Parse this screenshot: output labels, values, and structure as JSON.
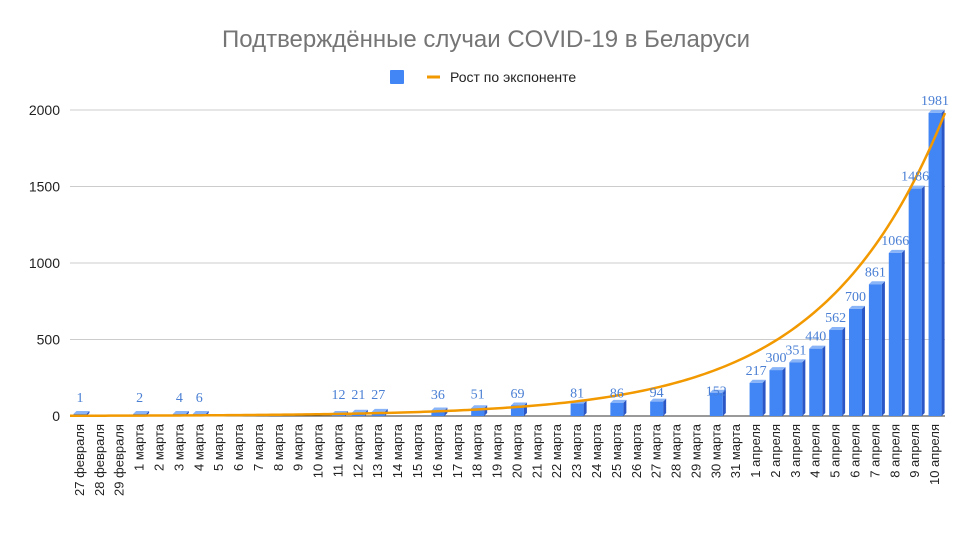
{
  "chart_data": {
    "type": "bar",
    "title": "Подтверждённые случаи COVID-19 в Беларуси",
    "legend": {
      "position": "top",
      "entries": [
        {
          "kind": "bar",
          "label": "",
          "color": "#4285f4"
        },
        {
          "kind": "line",
          "label": "Рост по экспоненте",
          "color": "#f29900"
        }
      ]
    },
    "categories": [
      "27 февраля",
      "28 февраля",
      "29 февраля",
      "1 марта",
      "2 марта",
      "3 марта",
      "4 марта",
      "5 марта",
      "6 марта",
      "7 марта",
      "8 марта",
      "9 марта",
      "10 марта",
      "11 марта",
      "12 марта",
      "13 марта",
      "14 марта",
      "15 марта",
      "16 марта",
      "17 марта",
      "18 марта",
      "19 марта",
      "20 марта",
      "21 марта",
      "22 марта",
      "23 марта",
      "24 марта",
      "25 марта",
      "26 марта",
      "27 марта",
      "28 марта",
      "29 марта",
      "30 марта",
      "31 марта",
      "1 апреля",
      "2 апреля",
      "3 апреля",
      "4 апреля",
      "5 апреля",
      "6 апреля",
      "7 апреля",
      "8 апреля",
      "9 апреля",
      "10 апреля"
    ],
    "series": [
      {
        "values": [
          1,
          null,
          null,
          2,
          null,
          4,
          6,
          null,
          null,
          null,
          null,
          null,
          null,
          12,
          21,
          27,
          null,
          null,
          36,
          null,
          51,
          null,
          69,
          null,
          null,
          81,
          null,
          86,
          null,
          94,
          null,
          null,
          152,
          null,
          217,
          300,
          351,
          440,
          562,
          700,
          861,
          1066,
          1486,
          1981
        ],
        "color": "#4285f4",
        "data_labels": true
      }
    ],
    "trendline": {
      "type": "exponential",
      "label": "Рост по экспоненте",
      "color": "#f29900",
      "start_value": 1.5,
      "end_value": 1825
    },
    "yticks": [
      0,
      500,
      1000,
      1500,
      2000
    ],
    "ylim": [
      0,
      2000
    ],
    "grid": true
  }
}
